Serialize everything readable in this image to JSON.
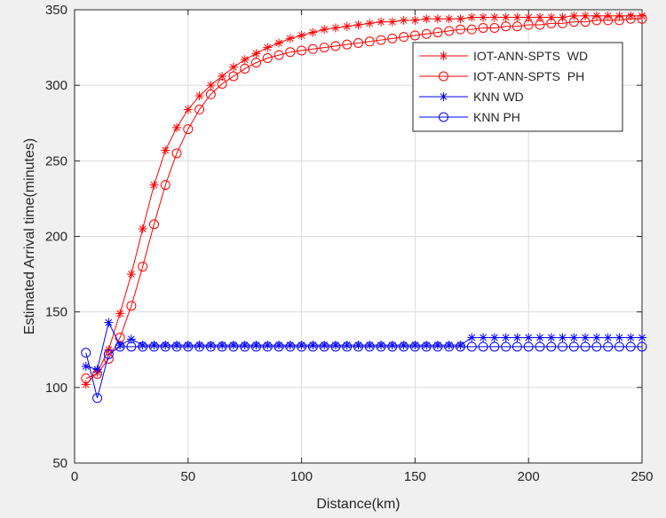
{
  "chart_data": {
    "type": "line",
    "title": "",
    "xlabel": "Distance(km)",
    "ylabel": "Estimated Arrival time(minutes)",
    "xlim": [
      0,
      250
    ],
    "ylim": [
      50,
      350
    ],
    "xticks": [
      0,
      50,
      100,
      150,
      200,
      250
    ],
    "yticks": [
      50,
      100,
      150,
      200,
      250,
      300,
      350
    ],
    "grid": true,
    "legend_position": "top-right",
    "x": [
      5,
      10,
      15,
      20,
      25,
      30,
      35,
      40,
      45,
      50,
      55,
      60,
      65,
      70,
      75,
      80,
      85,
      90,
      95,
      100,
      105,
      110,
      115,
      120,
      125,
      130,
      135,
      140,
      145,
      150,
      155,
      160,
      165,
      170,
      175,
      180,
      185,
      190,
      195,
      200,
      205,
      210,
      215,
      220,
      225,
      230,
      235,
      240,
      245,
      250
    ],
    "series": [
      {
        "name": "IOT-ANN-SPTS  WD",
        "color": "#ff0000",
        "marker": "asterisk",
        "values": [
          102,
          110,
          125,
          149,
          175,
          205,
          234,
          257,
          272,
          284,
          293,
          300,
          306,
          312,
          317,
          321,
          325,
          328,
          331,
          333,
          335,
          337,
          338,
          339,
          340,
          341,
          342,
          342,
          343,
          343,
          344,
          344,
          344,
          344,
          345,
          345,
          345,
          345,
          345,
          345,
          345,
          345,
          345,
          346,
          346,
          346,
          346,
          346,
          346,
          346
        ]
      },
      {
        "name": "IOT-ANN-SPTS  PH",
        "color": "#ff0000",
        "marker": "circle",
        "values": [
          106,
          109,
          119,
          133,
          154,
          180,
          208,
          234,
          255,
          271,
          284,
          294,
          301,
          306,
          311,
          315,
          318,
          320,
          322,
          323,
          324,
          325,
          326,
          327,
          328,
          329,
          330,
          331,
          332,
          333,
          334,
          335,
          336,
          337,
          337,
          338,
          338,
          339,
          339,
          340,
          340,
          341,
          341,
          342,
          342,
          343,
          343,
          343,
          344,
          344
        ]
      },
      {
        "name": "KNN WD",
        "color": "#0000ff",
        "marker": "asterisk",
        "values": [
          114,
          112,
          143,
          128,
          132,
          128,
          128,
          128,
          128,
          128,
          128,
          128,
          128,
          128,
          128,
          128,
          128,
          128,
          128,
          128,
          128,
          128,
          128,
          128,
          128,
          128,
          128,
          128,
          128,
          128,
          128,
          128,
          128,
          128,
          133,
          133,
          133,
          133,
          133,
          133,
          133,
          133,
          133,
          133,
          133,
          133,
          133,
          133,
          133,
          133
        ]
      },
      {
        "name": "KNN PH",
        "color": "#0000ff",
        "marker": "circle",
        "values": [
          123,
          93,
          122,
          127,
          127,
          127,
          127,
          127,
          127,
          127,
          127,
          127,
          127,
          127,
          127,
          127,
          127,
          127,
          127,
          127,
          127,
          127,
          127,
          127,
          127,
          127,
          127,
          127,
          127,
          127,
          127,
          127,
          127,
          127,
          127,
          127,
          127,
          127,
          127,
          127,
          127,
          127,
          127,
          127,
          127,
          127,
          127,
          127,
          127,
          127
        ]
      }
    ]
  }
}
